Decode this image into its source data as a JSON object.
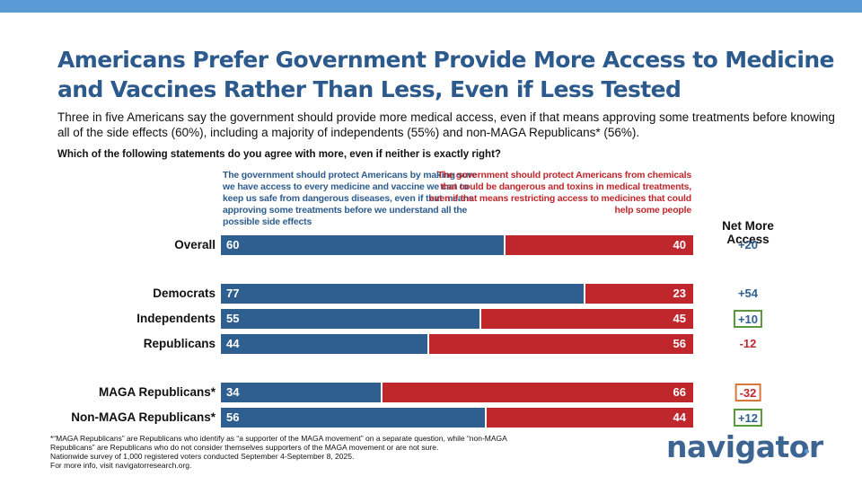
{
  "title": "Americans Prefer Government Provide More Access to Medicine and Vaccines Rather Than Less, Even if Less Tested",
  "subtitle": "Three in five Americans say the government should provide more medical access, even if that means approving some treatments before knowing all of the side effects (60%), including a majority of independents (55%) and non-MAGA Republicans* (56%).",
  "question": "Which of the following statements do you agree with more, even if neither is exactly right?",
  "colors": {
    "more_access": "#2f5f8f",
    "less_access": "#bf272d",
    "net_positive": "#2f5f8f",
    "net_negative": "#bf272d",
    "box_green": "#5a9a3c",
    "box_orange": "#d9773a",
    "accent_bar": "#5b9bd5"
  },
  "chart_data": {
    "type": "bar",
    "orientation": "horizontal",
    "stacked": true,
    "categories": [
      "Overall",
      "Democrats",
      "Independents",
      "Republicans",
      "MAGA Republicans*",
      "Non-MAGA Republicans*"
    ],
    "series": [
      {
        "name": "The government should protect Americans by making sure we have access to every medicine and vaccine we can to keep us safe from dangerous diseases, even if that means approving some treatments before we understand all the possible side effects",
        "values": [
          60,
          77,
          55,
          44,
          34,
          56
        ]
      },
      {
        "name": "The government should protect Americans from chemicals that could be dangerous and toxins in medical treatments, even if that means restricting access to medicines that could help some people",
        "values": [
          40,
          23,
          45,
          56,
          66,
          44
        ]
      }
    ],
    "net_label": "Net More Access",
    "net": [
      {
        "text": "+20",
        "box": "none"
      },
      {
        "text": "+54",
        "box": "none"
      },
      {
        "text": "+10",
        "box": "green"
      },
      {
        "text": "-12",
        "box": "none"
      },
      {
        "text": "-32",
        "box": "orange"
      },
      {
        "text": "+12",
        "box": "green"
      }
    ],
    "xlim": [
      0,
      100
    ],
    "grid": false
  },
  "footnotes": [
    "*“MAGA Republicans” are Republicans who identify as “a supporter of the MAGA movement” on a separate question, while “non-MAGA Republicans” are Republicans who do not consider themselves supporters of the MAGA movement or are not sure.",
    "Nationwide survey of 1,000 registered voters conducted September 4-September 8, 2025.",
    "For more info, visit navigatorresearch.org."
  ],
  "logo_text": "navigator"
}
